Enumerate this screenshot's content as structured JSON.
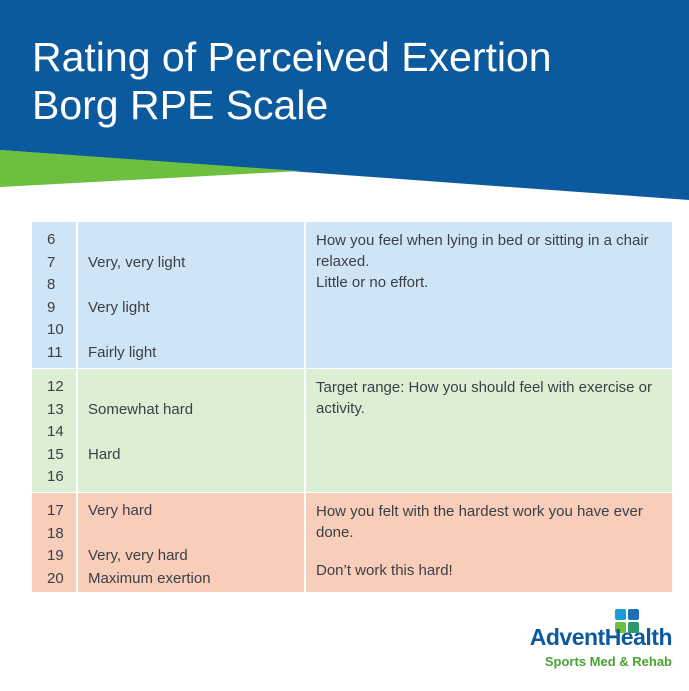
{
  "header": {
    "title": [
      "Rating of Perceived Exertion",
      "Borg RPE Scale"
    ]
  },
  "table": {
    "sections": [
      {
        "rows": [
          {
            "number": 6
          },
          {
            "number": 7,
            "label": "Very, very light"
          },
          {
            "number": 8
          },
          {
            "number": 9,
            "label": "Very light"
          },
          {
            "number": 10
          },
          {
            "number": 11,
            "label": "Fairly light"
          }
        ],
        "description": [
          "How you feel when lying in bed or sitting in a chair relaxed.",
          "Little or no effort."
        ]
      },
      {
        "rows": [
          {
            "number": 12
          },
          {
            "number": 13,
            "label": "Somewhat hard"
          },
          {
            "number": 14
          },
          {
            "number": 15,
            "label": "Hard"
          },
          {
            "number": 16
          }
        ],
        "description": [
          "Target range: How you should feel with exercise or activity."
        ]
      },
      {
        "rows": [
          {
            "number": 17,
            "label": "Very hard"
          },
          {
            "number": 18
          },
          {
            "number": 19,
            "label": "Very, very hard"
          },
          {
            "number": 20,
            "label": "Maximum exertion"
          }
        ],
        "description": [
          "How you felt with the hardest work you have ever done.",
          "Don’t work this hard!"
        ]
      }
    ]
  },
  "logo": {
    "name": "AdventHealth",
    "tagline": "Sports Med & Rehab"
  }
}
